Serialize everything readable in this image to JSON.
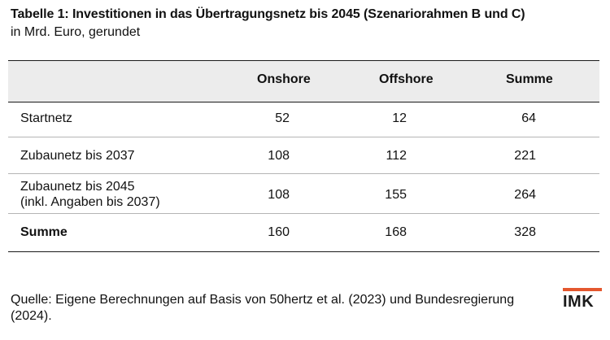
{
  "title": "Tabelle 1: Investitionen in das Übertragungsnetz bis 2045 (Szenariorahmen B und C)",
  "subtitle": "in Mrd. Euro, gerundet",
  "table": {
    "columns": [
      "Onshore",
      "Offshore",
      "Summe"
    ],
    "rows": [
      {
        "label_lines": [
          "Startnetz"
        ],
        "values": [
          "52",
          "12",
          "64"
        ],
        "bold": false
      },
      {
        "label_lines": [
          "Zubaunetz bis 2037"
        ],
        "values": [
          "108",
          "112",
          "221"
        ],
        "bold": false
      },
      {
        "label_lines": [
          "Zubaunetz bis 2045",
          "(inkl. Angaben bis 2037)"
        ],
        "values": [
          "108",
          "155",
          "264"
        ],
        "bold": false
      },
      {
        "label_lines": [
          "Summe"
        ],
        "values": [
          "160",
          "168",
          "328"
        ],
        "bold": true
      }
    ]
  },
  "source": "Quelle: Eigene Berechnungen auf Basis von 50hertz et al. (2023) und Bundesregierung (2024).",
  "logo": {
    "text": "IMK",
    "accent_color": "#e4572e"
  }
}
